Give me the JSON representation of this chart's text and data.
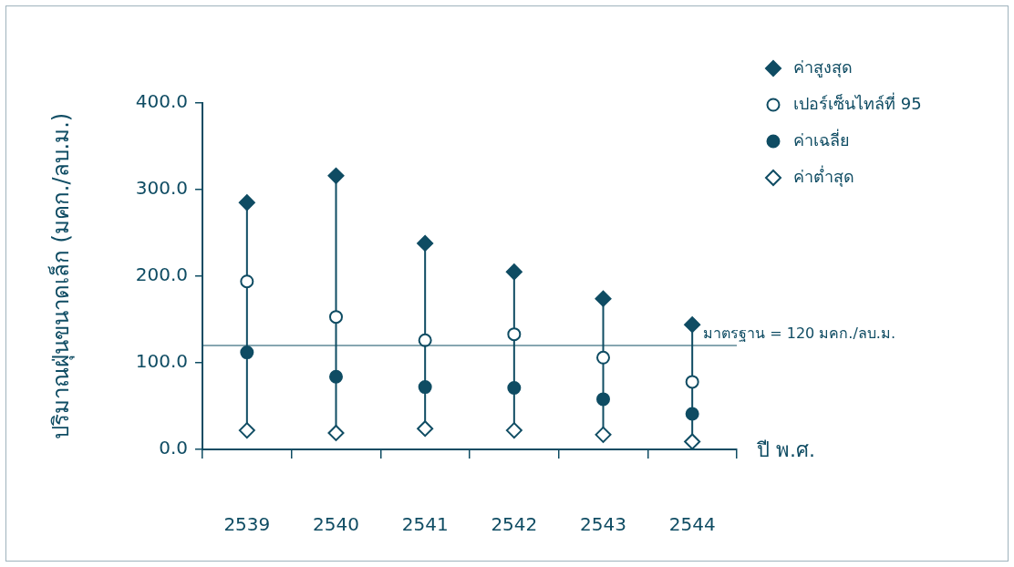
{
  "chart_data": {
    "type": "scatter",
    "ylabel": "ปริมาณฝุ่นขนาดเล็ก (มคก./ลบ.ม.)",
    "xlabel": "ปี พ.ศ.",
    "categories": [
      "2539",
      "2540",
      "2541",
      "2542",
      "2543",
      "2544"
    ],
    "series": [
      {
        "name": "ค่าสูงสุด",
        "color": "#0f4c63",
        "marker": "diamond",
        "values": [
          285,
          316,
          238,
          205,
          174,
          144
        ]
      },
      {
        "name": "เปอร์เซ็นไทล์ที่ 95",
        "color": "#0f4c63",
        "marker": "circle",
        "colors": [
          "#ffffff",
          "#ffffff",
          "#ffffff",
          "#ffffff",
          "#ffffff",
          "#ffffff"
        ],
        "values": [
          194,
          153,
          126,
          133,
          106,
          78
        ]
      },
      {
        "name": "ค่าเฉลี่ย",
        "color": "#0f4c63",
        "marker": "circle",
        "values": [
          112,
          84,
          72,
          71,
          58,
          41
        ]
      },
      {
        "name": "ค่าต่ำสุด",
        "color": "#0f4c63",
        "marker": "diamond",
        "colors": [
          "#ffffff",
          "#ffffff",
          "#ffffff",
          "#ffffff",
          "#ffffff",
          "#ffffff"
        ],
        "values": [
          22,
          19,
          24,
          22,
          17,
          9
        ]
      }
    ],
    "ylim": [
      0,
      400
    ],
    "yticks": [
      {
        "value": 0,
        "label": "0.0"
      },
      {
        "value": 100,
        "label": "100.0"
      },
      {
        "value": 200,
        "label": "200.0"
      },
      {
        "value": 300,
        "label": "300.0"
      },
      {
        "value": 400,
        "label": "400.0"
      }
    ],
    "ref_lines": [
      {
        "axis": "y",
        "value": 120,
        "label": "มาตรฐาน = 120 มคก./ลบ.ม.",
        "color": "#0f4c63"
      }
    ],
    "grid": false,
    "legend": "top right"
  }
}
